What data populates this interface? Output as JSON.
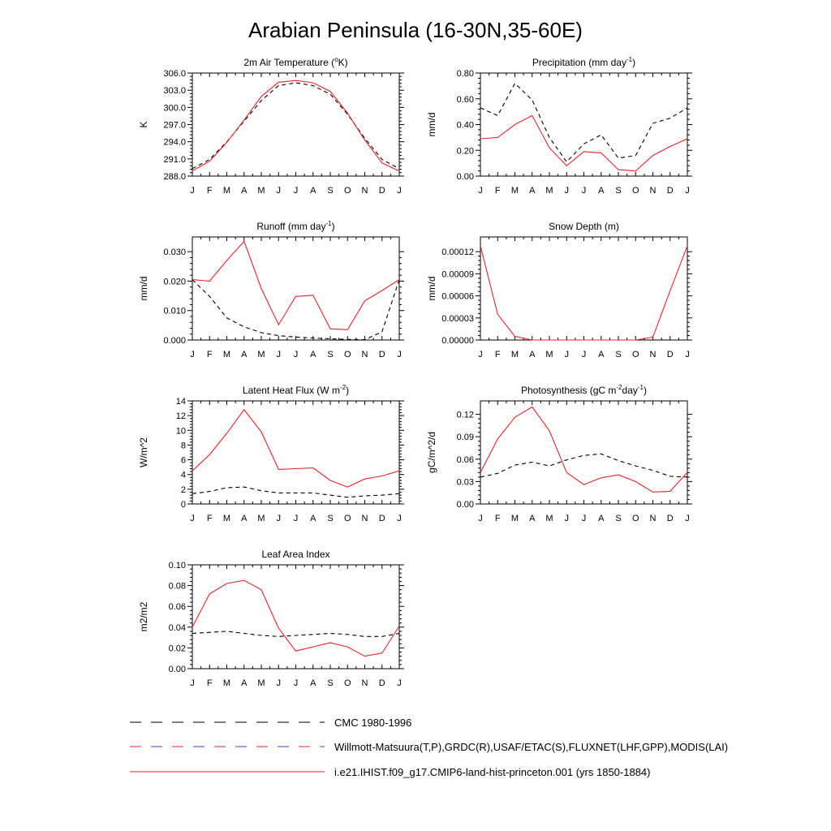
{
  "figure": {
    "title": "Arabian Peninsula (16-30N,35-60E)"
  },
  "months": [
    "J",
    "F",
    "M",
    "A",
    "M",
    "J",
    "J",
    "A",
    "S",
    "O",
    "N",
    "D",
    "J"
  ],
  "colors": {
    "model": "#e8232a",
    "cmc": "#000000",
    "obs": "#e8232a",
    "obs_alt": "#3b3bd0"
  },
  "chart_data": [
    {
      "id": "temp",
      "type": "line",
      "title": "2m Air Temperature (",
      "title_sup": "o",
      "title_end": "K)",
      "ylabel": "K",
      "ylim": [
        288,
        306
      ],
      "yticks": [
        288,
        291,
        294,
        297,
        300,
        303,
        306
      ],
      "tick_labels": [
        "288.0",
        "291.0",
        "294.0",
        "297.0",
        "300.0",
        "303.0",
        "306.0"
      ],
      "series": [
        {
          "name": "i.e21.IHIST.f09_g17.CMIP6-land-hist-princeton.001 (yrs 1850-1884)",
          "values": [
            288.9,
            290.6,
            293.9,
            297.8,
            301.9,
            304.4,
            304.7,
            304.3,
            302.8,
            299.0,
            294.3,
            290.3,
            288.9
          ]
        },
        {
          "name": "CMC 1980-1996",
          "values": [
            289.3,
            290.9,
            294.0,
            297.6,
            301.2,
            303.8,
            304.3,
            303.8,
            302.3,
            298.8,
            294.6,
            290.9,
            289.3
          ]
        }
      ]
    },
    {
      "id": "precip",
      "type": "line",
      "title": "Precipitation (mm day",
      "title_sup": "-1",
      "title_end": ")",
      "ylabel": "mm/d",
      "ylim": [
        0,
        0.8
      ],
      "yticks": [
        0,
        0.2,
        0.4,
        0.6,
        0.8
      ],
      "tick_labels": [
        "0.00",
        "0.20",
        "0.40",
        "0.60",
        "0.80"
      ],
      "series": [
        {
          "name": "model",
          "values": [
            0.29,
            0.3,
            0.4,
            0.47,
            0.22,
            0.08,
            0.19,
            0.18,
            0.05,
            0.04,
            0.16,
            0.23,
            0.29
          ]
        },
        {
          "name": "obs",
          "values": [
            0.53,
            0.47,
            0.72,
            0.59,
            0.3,
            0.11,
            0.25,
            0.32,
            0.14,
            0.16,
            0.41,
            0.45,
            0.53
          ]
        }
      ]
    },
    {
      "id": "runoff",
      "type": "line",
      "title": "Runoff (mm day",
      "title_sup": "-1",
      "title_end": ")",
      "ylabel": "mm/d",
      "ylim": [
        0,
        0.035
      ],
      "yticks": [
        0,
        0.01,
        0.02,
        0.03
      ],
      "tick_labels": [
        "0.000",
        "0.010",
        "0.020",
        "0.030"
      ],
      "series": [
        {
          "name": "model",
          "values": [
            0.0205,
            0.02,
            0.027,
            0.0335,
            0.0175,
            0.0052,
            0.0148,
            0.0152,
            0.0038,
            0.0035,
            0.0133,
            0.0168,
            0.0205
          ]
        },
        {
          "name": "obs",
          "values": [
            0.0205,
            0.0148,
            0.0075,
            0.0045,
            0.0025,
            0.0015,
            0.001,
            0.0007,
            0.0004,
            0.0002,
            0.0001,
            0.0028,
            0.0205
          ]
        }
      ]
    },
    {
      "id": "snow",
      "type": "line",
      "title": "Snow Depth (m)",
      "title_sup": "",
      "title_end": "",
      "ylabel": "mm/d",
      "ylim": [
        0,
        0.00014
      ],
      "yticks": [
        0,
        3e-05,
        6e-05,
        9e-05,
        0.00012
      ],
      "tick_labels": [
        "0.00000",
        "0.00003",
        "0.00006",
        "0.00009",
        "0.00012"
      ],
      "series": [
        {
          "name": "model",
          "values": [
            0.000128,
            3.5e-05,
            5e-06,
            0.0,
            0.0,
            0.0,
            0.0,
            0.0,
            0.0,
            0.0,
            4e-06,
            6.7e-05,
            0.000128
          ]
        },
        {
          "name": "obs",
          "values": [
            0,
            0,
            0,
            0,
            0,
            0,
            0,
            0,
            0,
            0,
            0,
            0,
            0
          ]
        }
      ]
    },
    {
      "id": "lhf",
      "type": "line",
      "title": "Latent Heat Flux (W m",
      "title_sup": "-2",
      "title_end": ")",
      "ylabel": "W/m^2",
      "ylim": [
        0,
        14
      ],
      "yticks": [
        0,
        2,
        4,
        6,
        8,
        10,
        12,
        14
      ],
      "tick_labels": [
        "0",
        "2",
        "4",
        "6",
        "8",
        "10",
        "12",
        "14"
      ],
      "series": [
        {
          "name": "model",
          "values": [
            4.5,
            6.7,
            9.6,
            12.8,
            9.8,
            4.7,
            4.8,
            4.9,
            3.2,
            2.3,
            3.4,
            3.8,
            4.5
          ]
        },
        {
          "name": "obs",
          "values": [
            1.4,
            1.7,
            2.2,
            2.3,
            1.8,
            1.5,
            1.5,
            1.5,
            1.2,
            0.9,
            1.1,
            1.2,
            1.4
          ]
        }
      ]
    },
    {
      "id": "gpp",
      "type": "line",
      "title": "Photosynthesis (gC m",
      "title_sup": "-2",
      "title_end": "day",
      "title_sup2": "-1",
      "title_end2": ")",
      "ylabel": "gC/m^2/d",
      "ylim": [
        0,
        0.138
      ],
      "yticks": [
        0,
        0.03,
        0.06,
        0.09,
        0.12
      ],
      "tick_labels": [
        "0.00",
        "0.03",
        "0.06",
        "0.09",
        "0.12"
      ],
      "series": [
        {
          "name": "model",
          "values": [
            0.042,
            0.087,
            0.116,
            0.13,
            0.098,
            0.042,
            0.026,
            0.035,
            0.039,
            0.03,
            0.016,
            0.017,
            0.042
          ]
        },
        {
          "name": "obs",
          "values": [
            0.036,
            0.041,
            0.052,
            0.056,
            0.051,
            0.059,
            0.065,
            0.067,
            0.058,
            0.051,
            0.045,
            0.037,
            0.036
          ]
        }
      ]
    },
    {
      "id": "lai",
      "type": "line",
      "title": "Leaf Area Index",
      "title_sup": "",
      "title_end": "",
      "ylabel": "m2/m2",
      "ylim": [
        0,
        0.1
      ],
      "yticks": [
        0,
        0.02,
        0.04,
        0.06,
        0.08,
        0.1
      ],
      "tick_labels": [
        "0.00",
        "0.02",
        "0.04",
        "0.06",
        "0.08",
        "0.10"
      ],
      "series": [
        {
          "name": "model",
          "values": [
            0.04,
            0.072,
            0.082,
            0.085,
            0.076,
            0.039,
            0.017,
            0.021,
            0.025,
            0.021,
            0.012,
            0.015,
            0.041
          ]
        },
        {
          "name": "obs",
          "values": [
            0.034,
            0.035,
            0.036,
            0.034,
            0.032,
            0.031,
            0.032,
            0.033,
            0.034,
            0.033,
            0.031,
            0.031,
            0.034
          ]
        }
      ]
    }
  ],
  "legend": {
    "items": [
      {
        "label": "CMC 1980-1996",
        "style": "dashed"
      },
      {
        "label": "Willmott-Matsuura(T,P),GRDC(R),USAF/ETAC(S),FLUXNET(LHF,GPP),MODIS(LAI)",
        "style": "dashed-mixed"
      },
      {
        "label": "i.e21.IHIST.f09_g17.CMIP6-land-hist-princeton.001 (yrs 1850-1884)",
        "style": "solid"
      }
    ]
  }
}
